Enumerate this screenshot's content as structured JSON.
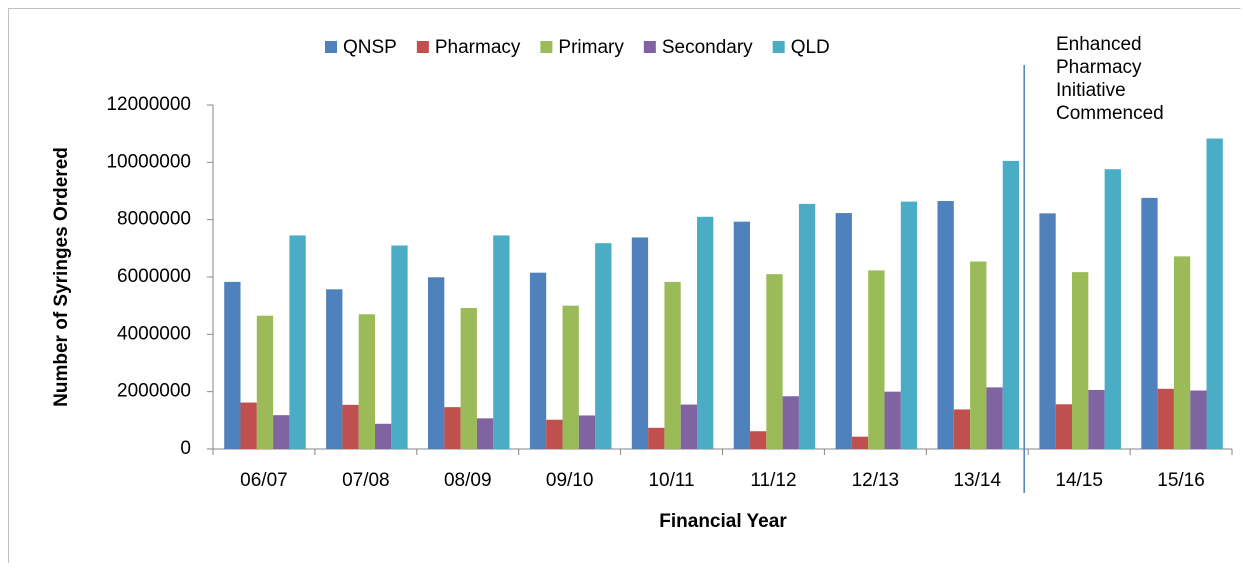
{
  "chart_data": {
    "type": "bar",
    "y_label": "Number of Syringes Ordered",
    "x_label": "Financial Year",
    "annotation": [
      "Enhanced",
      "Pharmacy",
      "Initiative",
      "Commenced"
    ],
    "categories": [
      "06/07",
      "07/08",
      "08/09",
      "09/10",
      "10/11",
      "11/12",
      "12/13",
      "13/14",
      "14/15",
      "15/16"
    ],
    "series": [
      {
        "name": "QNSP",
        "color": "#4f81bd",
        "values": [
          5830000,
          5570000,
          5990000,
          6150000,
          7380000,
          7930000,
          8230000,
          8650000,
          8220000,
          8760000
        ]
      },
      {
        "name": "Pharmacy",
        "color": "#c0504d",
        "values": [
          1620000,
          1540000,
          1460000,
          1020000,
          740000,
          620000,
          430000,
          1380000,
          1560000,
          2100000
        ]
      },
      {
        "name": "Primary",
        "color": "#9bbb59",
        "values": [
          4650000,
          4700000,
          4920000,
          5000000,
          5830000,
          6100000,
          6230000,
          6540000,
          6170000,
          6720000
        ]
      },
      {
        "name": "Secondary",
        "color": "#8064a2",
        "values": [
          1180000,
          880000,
          1070000,
          1170000,
          1550000,
          1840000,
          2000000,
          2150000,
          2060000,
          2040000
        ]
      },
      {
        "name": "QLD",
        "color": "#4bacc6",
        "values": [
          7450000,
          7100000,
          7450000,
          7180000,
          8100000,
          8550000,
          8630000,
          10050000,
          9760000,
          10830000
        ]
      }
    ],
    "ylim": [
      0,
      12000000
    ],
    "yticks": [
      0,
      2000000,
      4000000,
      6000000,
      8000000,
      10000000,
      12000000
    ],
    "grid": false
  }
}
